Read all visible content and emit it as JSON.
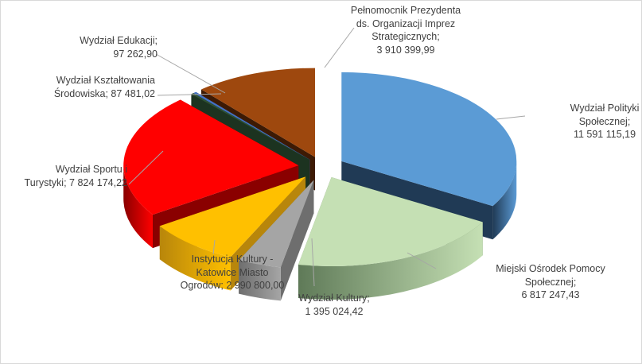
{
  "chart_data": {
    "type": "pie",
    "title": "",
    "style": "3d-exploded",
    "slices": [
      {
        "name": "Wydział Polityki Społecznej",
        "value": 11591115.19,
        "value_label": "11 591 115,19",
        "color": "#5b9bd5",
        "dark": "#203a55",
        "label_lines": [
          "Wydział Polityki",
          "Społecznej;",
          "11 591 115,19"
        ]
      },
      {
        "name": "Miejski Ośrodek Pomocy Społecznej",
        "value": 6817247.43,
        "value_label": "6 817 247,43",
        "color": "#c5e0b4",
        "dark": "#5f7a58",
        "label_lines": [
          "Miejski Ośrodek Pomocy",
          "Społecznej;",
          "6 817 247,43"
        ]
      },
      {
        "name": "Wydział Kultury",
        "value": 1395024.42,
        "value_label": "1 395 024,42",
        "color": "#a5a5a5",
        "dark": "#6e6e6e",
        "label_lines": [
          "Wydział Kultury;",
          "1 395 024,42"
        ]
      },
      {
        "name": "Instytucja Kultury - Katowice Miasto Ogrodów",
        "value": 2990800.0,
        "value_label": "2 990 800,00",
        "color": "#ffc000",
        "dark": "#b8860b",
        "label_lines": [
          "Instytucja Kultury -",
          "Katowice Miasto",
          "Ogrodów; 2 990 800,00"
        ]
      },
      {
        "name": "Wydział Sportu i Turystyki",
        "value": 7824174.22,
        "value_label": "7 824 174,22",
        "color": "#ff0000",
        "dark": "#8a0000",
        "label_lines": [
          "Wydział Sportu i",
          "Turystyki; 7 824 174,22"
        ]
      },
      {
        "name": "Wydział Kształtowania Środowiska",
        "value": 87481.02,
        "value_label": "87 481,02",
        "color": "#2f5233",
        "dark": "#1c3320",
        "label_lines": [
          "Wydział Kształtowania",
          "Środowiska; 87 481,02"
        ]
      },
      {
        "name": "Wydział Edukacji",
        "value": 97262.9,
        "value_label": "97 262,90",
        "color": "#4472c4",
        "dark": "#2b4a80",
        "label_lines": [
          "Wydział Edukacji;",
          "97 262,90"
        ]
      },
      {
        "name": "Pełnomocnik Prezydenta ds. Organizacji Imprez Strategicznych",
        "value": 3910399.99,
        "value_label": "3 910 399,99",
        "color": "#9e480e",
        "dark": "#3d1a04",
        "label_lines": [
          "Pełnomocnik Prezydenta",
          "ds. Organizacji Imprez",
          "Strategicznych;",
          "3 910 399,99"
        ]
      }
    ]
  }
}
